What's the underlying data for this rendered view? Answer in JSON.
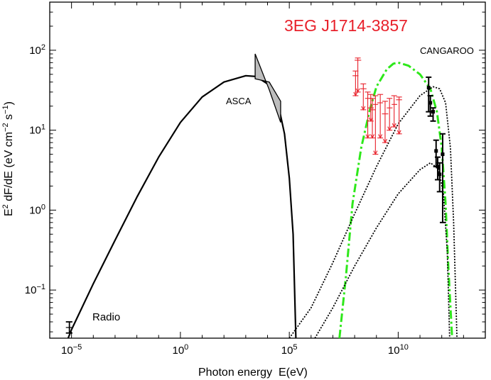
{
  "chart_data": {
    "type": "line",
    "title": "3EG J1714-3857",
    "xlabel": "Photon energy  E(eV)",
    "ylabel": "E2 dF/dE (eV cm-2 s-1)",
    "x_scale": "log",
    "y_scale": "log",
    "xlim": [
      1e-06,
      100000000000000.0
    ],
    "ylim": [
      0.025,
      400
    ],
    "grid": false,
    "x_ticks": [
      {
        "value": 1e-05,
        "base": "10",
        "exp": "−5"
      },
      {
        "value": 1,
        "base": "10",
        "exp": "0"
      },
      {
        "value": 100000.0,
        "base": "10",
        "exp": "5"
      },
      {
        "value": 10000000000.0,
        "base": "10",
        "exp": "10"
      }
    ],
    "y_ticks": [
      {
        "value": 0.1,
        "base": "10",
        "exp": "−1"
      },
      {
        "value": 1,
        "base": "10",
        "exp": "0"
      },
      {
        "value": 10,
        "base": "10",
        "exp": "1"
      },
      {
        "value": 100,
        "base": "10",
        "exp": "2"
      }
    ],
    "annotations": [
      {
        "text": "ASCA",
        "x": 3000,
        "y": 14
      },
      {
        "text": "CANGAROO",
        "x": 100000000000.0,
        "y": 85
      },
      {
        "text": "Radio",
        "x": 0.0001,
        "y": 0.037
      }
    ],
    "series": [
      {
        "style": "solid",
        "color": "#000000",
        "points": [
          [
            7e-06,
            0.025
          ],
          [
            1e-05,
            0.032
          ],
          [
            0.0001,
            0.12
          ],
          [
            0.001,
            0.42
          ],
          [
            0.01,
            1.45
          ],
          [
            0.1,
            4.6
          ],
          [
            1,
            12.5
          ],
          [
            10,
            26
          ],
          [
            100,
            40
          ],
          [
            1000,
            48
          ],
          [
            3000,
            47
          ],
          [
            10000.0,
            38
          ],
          [
            30000.0,
            22
          ],
          [
            60000.0,
            9
          ],
          [
            100000.0,
            2.5
          ],
          [
            150000.0,
            0.5
          ],
          [
            200000.0,
            0.025
          ]
        ]
      },
      {
        "style": "dash-dot",
        "color": "#2ee81a",
        "points": [
          [
            20000000.0,
            0.025
          ],
          [
            40000000.0,
            0.15
          ],
          [
            80000000.0,
            1.2
          ],
          [
            200000000.0,
            6
          ],
          [
            500000000.0,
            18
          ],
          [
            1000000000.0,
            35
          ],
          [
            3000000000.0,
            58
          ],
          [
            6000000000.0,
            68
          ],
          [
            10000000000.0,
            70
          ],
          [
            30000000000.0,
            64
          ],
          [
            100000000000.0,
            50
          ],
          [
            300000000000.0,
            33
          ],
          [
            600000000000.0,
            17
          ],
          [
            1000000000000.0,
            6
          ],
          [
            1500000000000.0,
            1.2
          ],
          [
            2000000000000.0,
            0.2
          ],
          [
            3000000000000.0,
            0.025
          ]
        ]
      },
      {
        "style": "dotted",
        "color": "#000000",
        "points": [
          [
            100000.0,
            0.025
          ],
          [
            1000000.0,
            0.06
          ],
          [
            10000000.0,
            0.22
          ],
          [
            100000000.0,
            0.9
          ],
          [
            1000000000.0,
            3.5
          ],
          [
            10000000000.0,
            12
          ],
          [
            100000000000.0,
            27
          ],
          [
            400000000000.0,
            35
          ],
          [
            800000000000.0,
            33
          ],
          [
            1500000000000.0,
            22
          ],
          [
            2500000000000.0,
            6
          ],
          [
            3500000000000.0,
            0.7
          ],
          [
            5000000000000.0,
            0.025
          ]
        ]
      },
      {
        "style": "dotted",
        "color": "#000000",
        "points": [
          [
            1500000.0,
            0.025
          ],
          [
            10000000.0,
            0.06
          ],
          [
            100000000.0,
            0.2
          ],
          [
            1000000000.0,
            0.6
          ],
          [
            10000000000.0,
            1.6
          ],
          [
            100000000000.0,
            3.2
          ],
          [
            300000000000.0,
            3.9
          ],
          [
            700000000000.0,
            3.3
          ],
          [
            1200000000000.0,
            1.6
          ],
          [
            1800000000000.0,
            0.3
          ],
          [
            2300000000000.0,
            0.025
          ]
        ]
      }
    ],
    "asca_bowtie": {
      "color": "#bdbdbd",
      "stroke": "#000000",
      "low": [
        [
          2700,
          90
        ],
        [
          12000,
          32
        ],
        [
          40000,
          12.5
        ]
      ],
      "high": [
        [
          2700,
          44
        ],
        [
          12000,
          40
        ],
        [
          40000,
          23
        ]
      ]
    },
    "radio_point": {
      "x": 8e-06,
      "y": 0.034,
      "y_lo": 0.029,
      "y_hi": 0.04,
      "x_lo": 5.5e-06,
      "x_hi": 1.1e-05
    },
    "egret_points": {
      "color": "#e8202a",
      "points": [
        {
          "x": 140000000.0,
          "y": 75,
          "ylo": 30,
          "yhi": 80,
          "xlo": 100000000.0,
          "xhi": 200000000.0
        },
        {
          "x": 110000000.0,
          "y": 48,
          "ylo": 27,
          "yhi": 55,
          "xlo": 80000000.0,
          "xhi": 150000000.0
        },
        {
          "x": 250000000.0,
          "y": 33,
          "ylo": 18,
          "yhi": 38,
          "xlo": 180000000.0,
          "xhi": 350000000.0
        },
        {
          "x": 400000000.0,
          "y": 25,
          "ylo": 8,
          "yhi": 30,
          "xlo": 300000000.0,
          "xhi": 550000000.0
        },
        {
          "x": 550000000.0,
          "y": 19,
          "ylo": 13,
          "yhi": 28,
          "xlo": 400000000.0,
          "xhi": 750000000.0
        },
        {
          "x": 650000000.0,
          "y": 18,
          "ylo": 8,
          "yhi": 25,
          "xlo": 500000000.0,
          "xhi": 900000000.0
        },
        {
          "x": 900000000.0,
          "y": 21,
          "ylo": 5,
          "yhi": 27,
          "xlo": 700000000.0,
          "xhi": 1200000000.0
        },
        {
          "x": 1500000000.0,
          "y": 22,
          "ylo": 8,
          "yhi": 28,
          "xlo": 1100000000.0,
          "xhi": 2000000000.0
        },
        {
          "x": 2500000000.0,
          "y": 16,
          "ylo": 7,
          "yhi": 23,
          "xlo": 1800000000.0,
          "xhi": 3500000000.0
        },
        {
          "x": 4000000000.0,
          "y": 19,
          "ylo": 10,
          "yhi": 25,
          "xlo": 3000000000.0,
          "xhi": 5500000000.0
        },
        {
          "x": 6500000000.0,
          "y": 21,
          "ylo": 11,
          "yhi": 27,
          "xlo": 5000000000.0,
          "xhi": 9000000000.0
        },
        {
          "x": 11000000000.0,
          "y": 24,
          "ylo": 9,
          "yhi": 26,
          "xlo": 8000000000.0,
          "xhi": 15000000000.0
        }
      ]
    },
    "cangaroo_points": {
      "color": "#000000",
      "points": [
        {
          "x": 250000000000.0,
          "y": 34,
          "ylo": 17,
          "yhi": 46,
          "xlo": 220000000000.0,
          "xhi": 290000000000.0
        },
        {
          "x": 300000000000.0,
          "y": 22,
          "ylo": 15,
          "yhi": 27,
          "xlo": 260000000000.0,
          "xhi": 350000000000.0
        },
        {
          "x": 400000000000.0,
          "y": 17,
          "ylo": 13,
          "yhi": 19,
          "xlo": 340000000000.0,
          "xhi": 460000000000.0
        },
        {
          "x": 550000000000.0,
          "y": 5.5,
          "ylo": 3.5,
          "yhi": 7.5,
          "xlo": 470000000000.0,
          "xhi": 630000000000.0
        },
        {
          "x": 650000000000.0,
          "y": 3.5,
          "ylo": 2.4,
          "yhi": 4.6,
          "xlo": 560000000000.0,
          "xhi": 750000000000.0
        },
        {
          "x": 800000000000.0,
          "y": 2.8,
          "ylo": 1.7,
          "yhi": 3.9,
          "xlo": 700000000000.0,
          "xhi": 900000000000.0
        },
        {
          "x": 1100000000000.0,
          "y": 5,
          "ylo": 0.7,
          "yhi": 9,
          "xlo": 900000000000.0,
          "xhi": 1300000000000.0
        }
      ]
    }
  }
}
